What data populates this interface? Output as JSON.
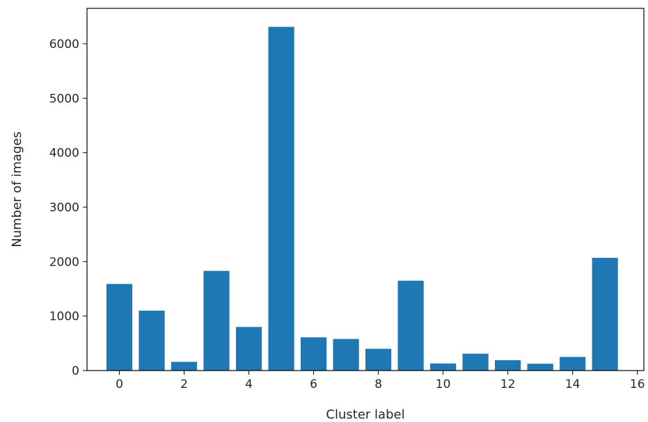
{
  "chart_data": {
    "type": "bar",
    "title": "",
    "xlabel": "Cluster label",
    "ylabel": "Number of images",
    "categories": [
      0,
      1,
      2,
      3,
      4,
      5,
      6,
      7,
      8,
      9,
      10,
      11,
      12,
      13,
      14,
      15
    ],
    "values": [
      1590,
      1100,
      160,
      1830,
      800,
      6310,
      610,
      580,
      400,
      1650,
      130,
      310,
      190,
      125,
      250,
      2070
    ],
    "xlim": [
      -1.0,
      16.2
    ],
    "ylim": [
      0,
      6650
    ],
    "xticks": [
      0,
      2,
      4,
      6,
      8,
      10,
      12,
      14,
      16
    ],
    "yticks": [
      0,
      1000,
      2000,
      3000,
      4000,
      5000,
      6000
    ],
    "bar_width": 0.8,
    "grid": false,
    "bar_color": "#1f77b4"
  }
}
